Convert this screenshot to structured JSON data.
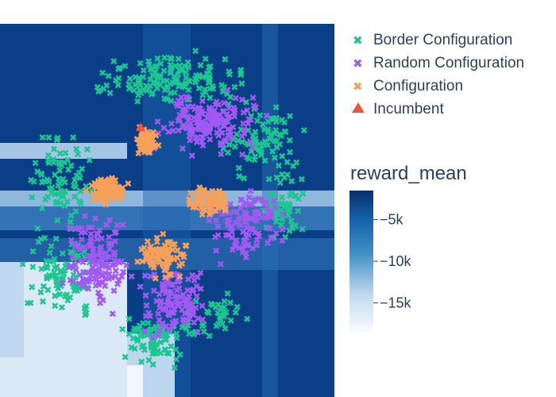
{
  "chart_data": {
    "type": "scatter",
    "heatmap_title": "reward_mean",
    "colorscale": {
      "low": "#f4f8fd",
      "mid": "#5e9bd0",
      "high": "#08306b"
    },
    "colorbar": {
      "range": [
        -18500,
        -1500
      ],
      "ticks": [
        {
          "value": -5000,
          "label": "−5k"
        },
        {
          "value": -10000,
          "label": "−10k"
        },
        {
          "value": -15000,
          "label": "−15k"
        }
      ]
    },
    "series": [
      {
        "name": "Border Configuration",
        "marker": "x",
        "color": "#1cc690"
      },
      {
        "name": "Random Configuration",
        "marker": "x",
        "color": "#a259f4"
      },
      {
        "name": "Configuration",
        "marker": "x",
        "color": "#f8a05a"
      },
      {
        "name": "Incumbent",
        "marker": "triangle-up",
        "color": "#ef553b"
      }
    ],
    "legend_placement": "top-right",
    "axes_visible": false
  }
}
